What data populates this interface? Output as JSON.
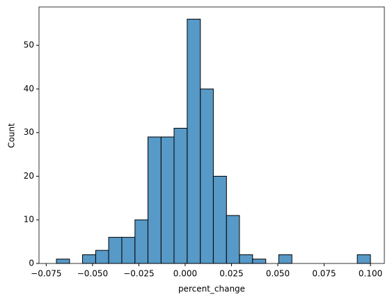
{
  "chart_data": {
    "type": "histogram",
    "xlabel": "percent_change",
    "ylabel": "Count",
    "bins": [
      -0.0695,
      -0.0624,
      -0.0554,
      -0.0483,
      -0.0413,
      -0.0342,
      -0.0271,
      -0.0201,
      -0.013,
      -0.006,
      0.0011,
      0.0082,
      0.0152,
      0.0223,
      0.0293,
      0.0364,
      0.0435,
      0.0505,
      0.0576,
      0.0646,
      0.0717,
      0.0788,
      0.0858,
      0.0929,
      0.1
    ],
    "values": [
      1,
      0,
      2,
      3,
      6,
      6,
      10,
      29,
      29,
      31,
      56,
      40,
      20,
      11,
      2,
      1,
      0,
      2,
      0,
      0,
      0,
      0,
      0,
      2
    ],
    "color": "#5799c7",
    "xlim": [
      -0.0789,
      0.1075
    ],
    "xticks": [
      {
        "value": -0.075,
        "label": "−0.075"
      },
      {
        "value": -0.05,
        "label": "−0.050"
      },
      {
        "value": -0.025,
        "label": "−0.025"
      },
      {
        "value": 0,
        "label": "0.000"
      },
      {
        "value": 0.025,
        "label": "0.025"
      },
      {
        "value": 0.05,
        "label": "0.050"
      },
      {
        "value": 0.075,
        "label": "0.075"
      },
      {
        "value": 0.1,
        "label": "0.100"
      }
    ],
    "ylim": [
      0,
      58.8
    ],
    "yticks": [
      0,
      10,
      20,
      30,
      40,
      50
    ]
  }
}
